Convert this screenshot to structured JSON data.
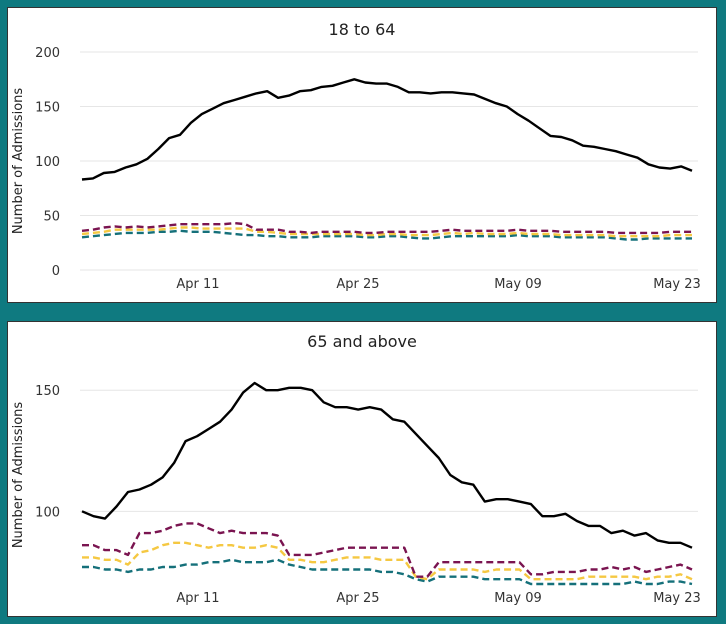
{
  "colors": {
    "background": "#0f7a80",
    "black": "#000000",
    "maroon": "#7a1450",
    "yellow": "#f5c842",
    "teal": "#15707a"
  },
  "chart_data": [
    {
      "type": "line",
      "title": "18 to 64",
      "ylabel": "Number of Admissions",
      "ylim": [
        0,
        200
      ],
      "yticks": [
        0,
        50,
        100,
        150,
        200
      ],
      "xticks": [
        "Apr 11",
        "Apr 25",
        "May 09",
        "May 23"
      ],
      "grid": true,
      "series": [
        {
          "color": "black",
          "dash": false,
          "values": [
            83,
            84,
            89,
            90,
            94,
            97,
            102,
            111,
            121,
            124,
            135,
            143,
            148,
            153,
            156,
            159,
            162,
            164,
            158,
            160,
            164,
            165,
            168,
            169,
            172,
            175,
            172,
            171,
            171,
            168,
            163,
            163,
            162,
            163,
            163,
            162,
            161,
            157,
            153,
            150,
            143,
            137,
            130,
            123,
            122,
            119,
            114,
            113,
            111,
            109,
            106,
            103,
            97,
            94,
            93,
            95,
            91
          ]
        },
        {
          "color": "maroon",
          "dash": true,
          "values": [
            36,
            37,
            39,
            40,
            39,
            40,
            39,
            40,
            41,
            42,
            42,
            42,
            42,
            42,
            43,
            42,
            37,
            37,
            37,
            35,
            35,
            34,
            35,
            35,
            35,
            35,
            34,
            34,
            35,
            35,
            35,
            35,
            35,
            36,
            37,
            36,
            36,
            36,
            36,
            36,
            37,
            36,
            36,
            36,
            35,
            35,
            35,
            35,
            35,
            34,
            34,
            34,
            34,
            34,
            35,
            35,
            35
          ]
        },
        {
          "color": "yellow",
          "dash": true,
          "values": [
            33,
            34,
            35,
            37,
            37,
            37,
            37,
            37,
            38,
            39,
            39,
            38,
            38,
            38,
            38,
            38,
            35,
            35,
            34,
            33,
            33,
            33,
            33,
            33,
            33,
            33,
            32,
            32,
            33,
            33,
            32,
            32,
            32,
            33,
            34,
            33,
            34,
            33,
            33,
            33,
            34,
            33,
            33,
            33,
            32,
            32,
            32,
            32,
            32,
            31,
            31,
            31,
            31,
            31,
            32,
            32,
            32
          ]
        },
        {
          "color": "teal",
          "dash": true,
          "values": [
            30,
            31,
            32,
            33,
            34,
            34,
            34,
            35,
            35,
            36,
            35,
            35,
            35,
            34,
            33,
            32,
            32,
            31,
            31,
            30,
            30,
            30,
            31,
            31,
            31,
            31,
            30,
            30,
            31,
            31,
            30,
            29,
            29,
            30,
            31,
            31,
            31,
            31,
            31,
            31,
            32,
            31,
            31,
            31,
            30,
            30,
            30,
            30,
            30,
            29,
            28,
            28,
            29,
            29,
            29,
            29,
            29
          ]
        }
      ]
    },
    {
      "type": "line",
      "title": "65 and above",
      "ylabel": "Number of Admissions",
      "ylim": [
        70,
        160
      ],
      "yticks": [
        100,
        150
      ],
      "xticks": [
        "Apr 11",
        "Apr 25",
        "May 09",
        "May 23"
      ],
      "grid": true,
      "series": [
        {
          "color": "black",
          "dash": false,
          "values": [
            100,
            98,
            97,
            102,
            108,
            109,
            111,
            114,
            120,
            129,
            131,
            134,
            137,
            142,
            149,
            153,
            150,
            150,
            151,
            151,
            150,
            145,
            143,
            143,
            142,
            143,
            142,
            138,
            137,
            132,
            127,
            122,
            115,
            112,
            111,
            104,
            105,
            105,
            104,
            103,
            98,
            98,
            99,
            96,
            94,
            94,
            91,
            92,
            90,
            91,
            88,
            87,
            87,
            85
          ]
        },
        {
          "color": "maroon",
          "dash": true,
          "values": [
            86,
            86,
            84,
            84,
            82,
            91,
            91,
            92,
            94,
            95,
            95,
            93,
            91,
            92,
            91,
            91,
            91,
            90,
            82,
            82,
            82,
            83,
            84,
            85,
            85,
            85,
            85,
            85,
            85,
            73,
            73,
            79,
            79,
            79,
            79,
            79,
            79,
            79,
            79,
            74,
            74,
            75,
            75,
            75,
            76,
            76,
            77,
            76,
            77,
            75,
            76,
            77,
            78,
            76
          ]
        },
        {
          "color": "yellow",
          "dash": true,
          "values": [
            81,
            81,
            80,
            80,
            78,
            83,
            84,
            86,
            87,
            87,
            86,
            85,
            86,
            86,
            85,
            85,
            86,
            85,
            80,
            80,
            79,
            79,
            80,
            81,
            81,
            81,
            80,
            80,
            80,
            73,
            72,
            76,
            76,
            76,
            76,
            75,
            76,
            76,
            76,
            72,
            72,
            72,
            72,
            72,
            73,
            73,
            73,
            73,
            73,
            72,
            73,
            73,
            74,
            72
          ]
        },
        {
          "color": "teal",
          "dash": true,
          "values": [
            77,
            77,
            76,
            76,
            75,
            76,
            76,
            77,
            77,
            78,
            78,
            79,
            79,
            80,
            79,
            79,
            79,
            80,
            78,
            77,
            76,
            76,
            76,
            76,
            76,
            76,
            75,
            75,
            74,
            72,
            71,
            73,
            73,
            73,
            73,
            72,
            72,
            72,
            72,
            70,
            70,
            70,
            70,
            70,
            70,
            70,
            70,
            70,
            71,
            70,
            70,
            71,
            71,
            70
          ]
        }
      ]
    }
  ]
}
